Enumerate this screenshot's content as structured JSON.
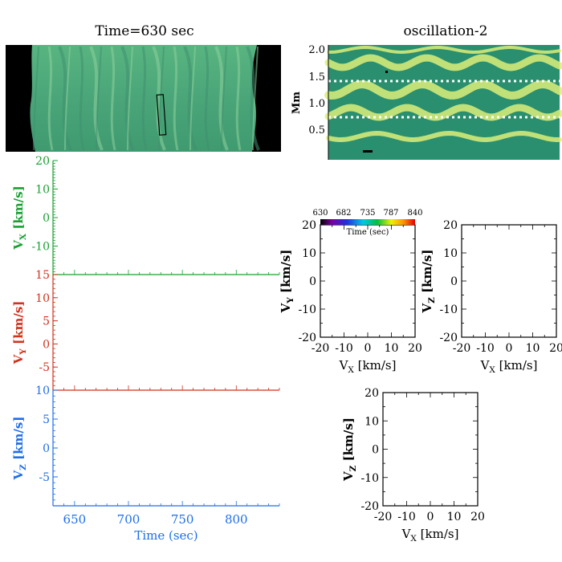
{
  "top_left": {
    "title": "Time=630 sec"
  },
  "top_right": {
    "title": "oscillation-2",
    "ylabel": "Mm",
    "ticks": [
      "2.0",
      "1.5",
      "1.0",
      "0.5"
    ]
  },
  "colors": {
    "green": "#1aa032",
    "red": "#d2321e",
    "blue": "#1e6eeb",
    "map_green": "#1f8f6e",
    "map_yellow": "#dcef7a"
  },
  "chart_data": [
    {
      "type": "line",
      "title": "",
      "xlabel": "",
      "ylabel": "V_X [km/s]",
      "xlim": [
        630,
        840
      ],
      "ylim": [
        -20,
        20
      ],
      "yticks": [
        "20",
        "10",
        "0",
        "-10"
      ],
      "series": [
        {
          "name": "V_X",
          "x": [
            630,
            840
          ],
          "values": [
            null,
            null
          ]
        }
      ]
    },
    {
      "type": "line",
      "title": "",
      "xlabel": "",
      "ylabel": "V_Y [km/s]",
      "xlim": [
        630,
        840
      ],
      "ylim": [
        -10,
        15
      ],
      "yticks": [
        "15",
        "10",
        "5",
        "0",
        "-5"
      ],
      "series": [
        {
          "name": "V_Y",
          "x": [
            630,
            840
          ],
          "values": [
            null,
            null
          ]
        }
      ]
    },
    {
      "type": "line",
      "title": "",
      "xlabel": "Time (sec)",
      "ylabel": "V_Z [km/s]",
      "xlim": [
        630,
        840
      ],
      "ylim": [
        -10,
        10
      ],
      "yticks": [
        "10",
        "5",
        "0",
        "-5"
      ],
      "xticks": [
        "650",
        "700",
        "750",
        "800"
      ],
      "series": [
        {
          "name": "V_Z",
          "x": [
            630,
            840
          ],
          "values": [
            null,
            null
          ]
        }
      ]
    },
    {
      "type": "scatter",
      "title": "",
      "xlabel": "V_X [km/s]",
      "ylabel": "V_Y [km/s]",
      "xlim": [
        -20,
        20
      ],
      "ylim": [
        -20,
        20
      ],
      "xticks": [
        "-20",
        "-10",
        "0",
        "10",
        "20"
      ],
      "yticks": [
        "20",
        "10",
        "0",
        "-10",
        "-20"
      ],
      "series": []
    },
    {
      "type": "scatter",
      "title": "",
      "xlabel": "V_X [km/s]",
      "ylabel": "V_Z [km/s]",
      "xlim": [
        -20,
        20
      ],
      "ylim": [
        -20,
        20
      ],
      "xticks": [
        "-20",
        "-10",
        "0",
        "10",
        "20"
      ],
      "yticks": [
        "20",
        "10",
        "0",
        "-10",
        "-20"
      ],
      "series": []
    },
    {
      "type": "scatter",
      "title": "",
      "xlabel": "V_X [km/s]",
      "ylabel": "V_Z [km/s]",
      "xlim": [
        -20,
        20
      ],
      "ylim": [
        -20,
        20
      ],
      "xticks": [
        "-20",
        "-10",
        "0",
        "10",
        "20"
      ],
      "yticks": [
        "20",
        "10",
        "0",
        "-10",
        "-20"
      ],
      "series": []
    }
  ],
  "colorbar": {
    "labels": [
      "630",
      "682",
      "735",
      "787",
      "840"
    ],
    "title": "Time (sec)"
  }
}
